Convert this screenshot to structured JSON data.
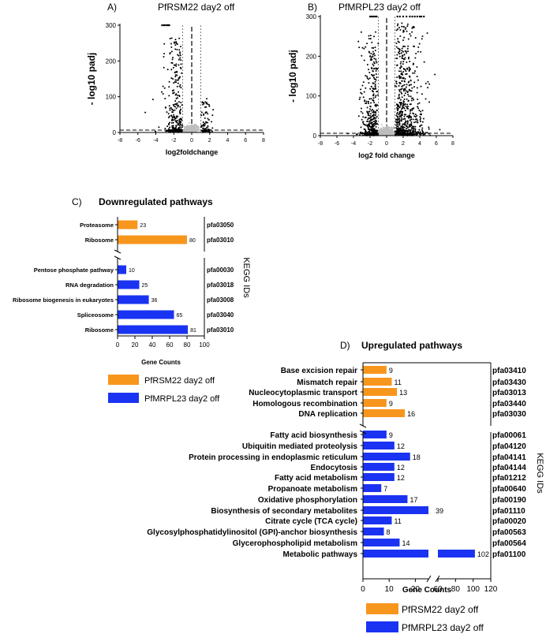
{
  "colors": {
    "orange": "#F7961D",
    "blue": "#1A33F2",
    "grey_dot": "#BDBDBD",
    "black": "#000000"
  },
  "chart_data": [
    {
      "id": "A",
      "type": "scatter",
      "panel_label": "A)",
      "title": "PfRSM22 day2 off",
      "xlabel": "log2foldchange",
      "ylabel": "- log10 padj",
      "xlim": [
        -8,
        8
      ],
      "ylim": [
        0,
        300
      ],
      "x_ticks": [
        -8,
        -6,
        -4,
        -2,
        0,
        2,
        4,
        6,
        8
      ],
      "y_ticks": [
        0,
        100,
        200,
        300
      ],
      "fc_threshold": 1,
      "cap": 300,
      "cap_points_x": [
        -3.3,
        -3.1,
        -3.0,
        -2.8,
        -2.7,
        -2.6,
        -2.5
      ],
      "n_nonsig": 340,
      "n_down": 300,
      "n_up": 90
    },
    {
      "id": "B",
      "type": "scatter",
      "panel_label": "B)",
      "title": "PfMRPL23 day2 off",
      "xlabel": "log2 fold change",
      "ylabel": "- log10 padj",
      "xlim": [
        -8,
        8
      ],
      "ylim": [
        0,
        300
      ],
      "x_ticks": [
        -8,
        -6,
        -4,
        -2,
        0,
        2,
        4,
        6,
        8
      ],
      "y_ticks": [
        0,
        100,
        200,
        300
      ],
      "fc_threshold": 1,
      "cap": 300,
      "cap_points_x": [
        -2.0,
        -1.8,
        -1.6,
        -1.4,
        -1.2,
        1.3,
        1.6,
        2.0,
        2.4,
        2.8,
        3.1,
        3.4,
        3.7,
        4.0,
        4.2,
        4.5
      ],
      "n_nonsig": 520,
      "n_down": 420,
      "n_up": 650
    },
    {
      "id": "C",
      "type": "bar",
      "panel_label": "C)",
      "title": "Downregulated pathways",
      "xlabel": "Gene Counts",
      "ylabel": "KEGG IDs",
      "xlim": [
        0,
        100
      ],
      "x_ticks": [
        0,
        20,
        40,
        60,
        80,
        100
      ],
      "groups": [
        {
          "series": "PfRSM22 day2 off",
          "color": "#F7961D",
          "bars": [
            {
              "label": "Proteasome",
              "value": 23,
              "kegg": "pfa03050"
            },
            {
              "label": "Ribosome",
              "value": 80,
              "kegg": "pfa03010"
            }
          ]
        },
        {
          "series": "PfMRPL23 day2 off",
          "color": "#1A33F2",
          "bars": [
            {
              "label": "Pentose phosphate pathway",
              "value": 10,
              "kegg": "pfa00030"
            },
            {
              "label": "RNA degradation",
              "value": 25,
              "kegg": "pfa03018"
            },
            {
              "label": "Ribosome biogenesis in eukaryotes",
              "value": 36,
              "kegg": "pfa03008"
            },
            {
              "label": "Spliceosome",
              "value": 65,
              "kegg": "pfa03040"
            },
            {
              "label": "Ribosome",
              "value": 81,
              "kegg": "pfa03010"
            }
          ]
        }
      ],
      "legend": [
        "PfRSM22 day2 off",
        "PfMRPL23 day2 off"
      ]
    },
    {
      "id": "D",
      "type": "bar",
      "panel_label": "D)",
      "title": "Upregulated pathways",
      "xlabel": "Gene Counts",
      "ylabel": "KEGG IDs",
      "broken_axis": {
        "seg1": [
          0,
          25
        ],
        "seg2": [
          60,
          120
        ]
      },
      "x_ticks": [
        0,
        10,
        20,
        60,
        80,
        100,
        120
      ],
      "groups": [
        {
          "series": "PfRSM22 day2 off",
          "color": "#F7961D",
          "bars": [
            {
              "label": "Base excision repair",
              "value": 9,
              "kegg": "pfa03410"
            },
            {
              "label": "Mismatch repair",
              "value": 11,
              "kegg": "pfa03430"
            },
            {
              "label": "Nucleocytoplasmic transport",
              "value": 13,
              "kegg": "pfa03013"
            },
            {
              "label": "Homologous recombination",
              "value": 9,
              "kegg": "pfa03440"
            },
            {
              "label": "DNA replication",
              "value": 16,
              "kegg": "pfa03030"
            }
          ]
        },
        {
          "series": "PfMRPL23 day2 off",
          "color": "#1A33F2",
          "bars": [
            {
              "label": "Fatty acid biosynthesis",
              "value": 9,
              "kegg": "pfa00061"
            },
            {
              "label": "Ubiquitin mediated proteolysis",
              "value": 12,
              "kegg": "pfa04120"
            },
            {
              "label": "Protein processing in endoplasmic reticulum",
              "value": 18,
              "kegg": "pfa04141"
            },
            {
              "label": "Endocytosis",
              "value": 12,
              "kegg": "pfa04144"
            },
            {
              "label": "Fatty acid metabolism",
              "value": 12,
              "kegg": "pfa01212"
            },
            {
              "label": "Propanoate metabolism",
              "value": 7,
              "kegg": "pfa00640"
            },
            {
              "label": "Oxidative phosphorylation",
              "value": 17,
              "kegg": "pfa00190"
            },
            {
              "label": "Biosynthesis of secondary metabolites",
              "value": 39,
              "kegg": "pfa01110"
            },
            {
              "label": "Citrate cycle (TCA cycle)",
              "value": 11,
              "kegg": "pfa00020"
            },
            {
              "label": "Glycosylphosphatidylinositol (GPI)-anchor biosynthesis",
              "value": 8,
              "kegg": "pfa00563"
            },
            {
              "label": "Glycerophospholipid metabolism",
              "value": 14,
              "kegg": "pfa00564"
            },
            {
              "label": "Metabolic pathways",
              "value": 102,
              "kegg": "pfa01100"
            }
          ]
        }
      ],
      "legend": [
        "PfRSM22 day2 off",
        "PfMRPL23 day2 off"
      ]
    }
  ]
}
